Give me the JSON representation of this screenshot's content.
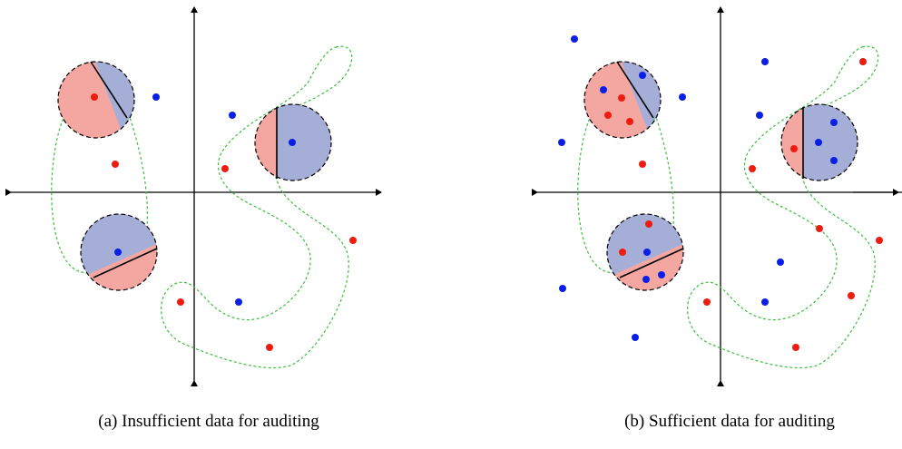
{
  "captions": {
    "a": "(a) Insufficient data for auditing",
    "b": "(b) Sufficient data for auditing"
  },
  "colors": {
    "red_point": "#ee1c0e",
    "blue_point": "#0a1fe6",
    "red_region": "#f4a6a0",
    "blue_region": "#a4aed6",
    "boundary_curve": "#3cbf3c",
    "axes": "#000000"
  }
}
